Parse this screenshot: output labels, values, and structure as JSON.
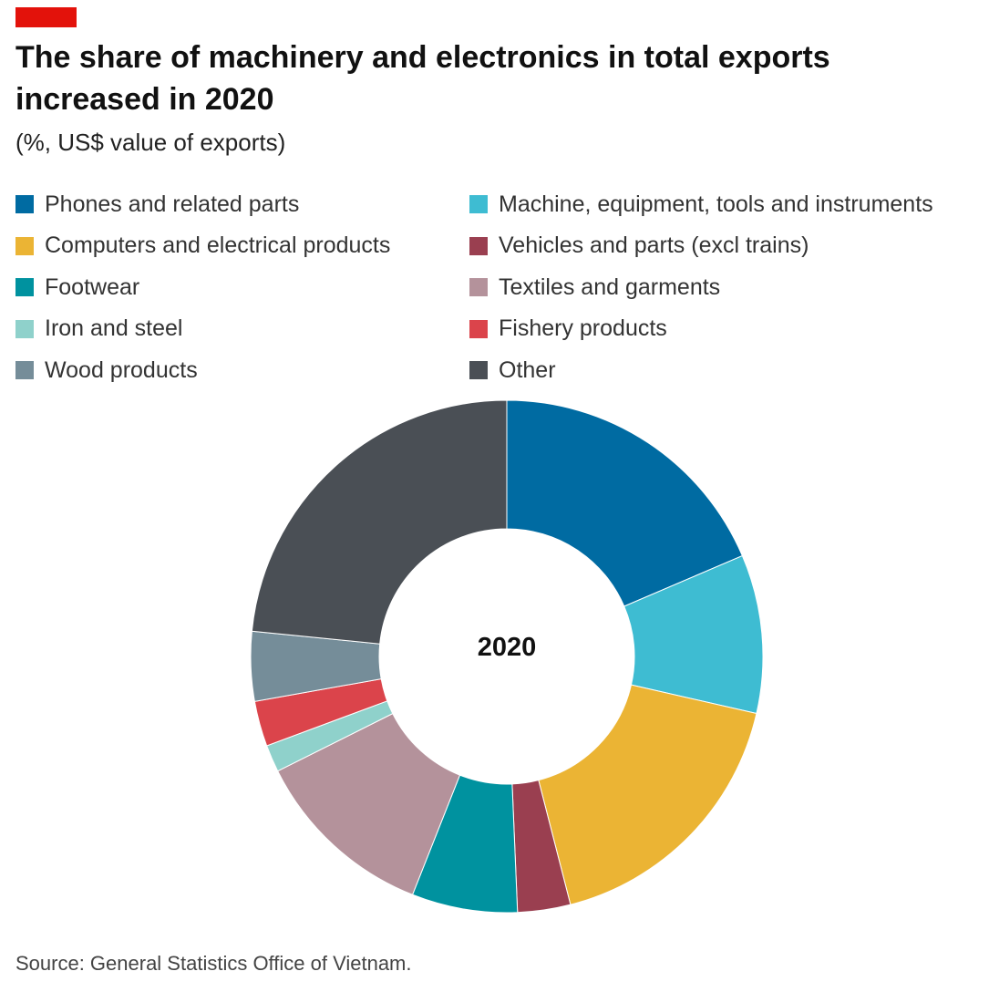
{
  "title": "The share of machinery and electronics in total exports increased in 2020",
  "subtitle": "(%, US$ value of exports)",
  "source": "Source: General Statistics Office of Vietnam.",
  "accent_color": "#e3120b",
  "chart_data": {
    "type": "pie",
    "center_label": "2020",
    "legend_placement": "top, two columns",
    "categories": [
      "Phones and related parts",
      "Machine, equipment, tools and instruments",
      "Computers and electrical products",
      "Vehicles and parts (excl trains)",
      "Footwear",
      "Textiles and garments",
      "Iron and steel",
      "Fishery products",
      "Wood products",
      "Other"
    ],
    "values": [
      19.5,
      10.5,
      18.3,
      3.5,
      7.0,
      12.2,
      1.8,
      3.0,
      4.6,
      24.6
    ],
    "colors": [
      "#006ba2",
      "#3ebcd2",
      "#ebb434",
      "#9a3f50",
      "#00929f",
      "#b4929b",
      "#8fd1cb",
      "#db444b",
      "#758d99",
      "#4a4f55"
    ]
  }
}
